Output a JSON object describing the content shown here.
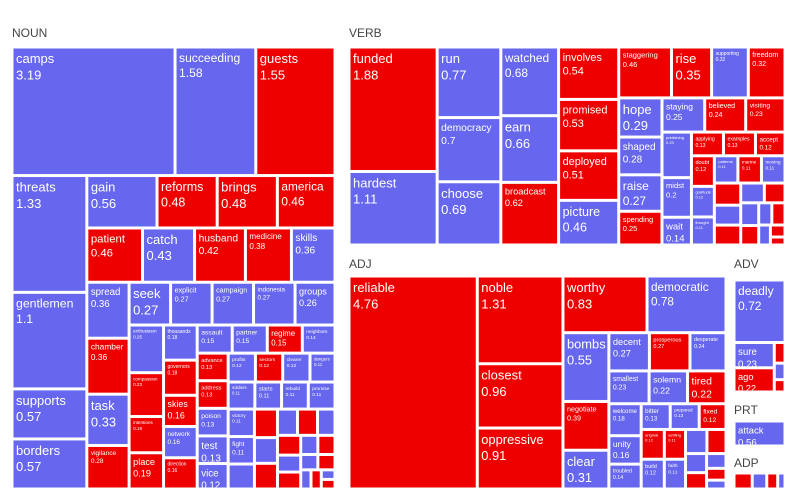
{
  "chart_data": {
    "type": "treemap",
    "colors": {
      "positive": "#6666ee",
      "negative": "#ee0000",
      "text": "#ffffff",
      "header": "#444444"
    },
    "groups": [
      {
        "name": "NOUN",
        "items": [
          {
            "label": "camps",
            "value": 3.19,
            "sentiment": "positive"
          },
          {
            "label": "succeeding",
            "value": 1.58,
            "sentiment": "positive"
          },
          {
            "label": "guests",
            "value": 1.55,
            "sentiment": "negative"
          },
          {
            "label": "threats",
            "value": 1.33,
            "sentiment": "positive"
          },
          {
            "label": "gentlemen",
            "value": 1.1,
            "sentiment": "positive"
          },
          {
            "label": "supports",
            "value": 0.57,
            "sentiment": "positive"
          },
          {
            "label": "borders",
            "value": 0.57,
            "sentiment": "positive"
          },
          {
            "label": "gain",
            "value": 0.56,
            "sentiment": "positive"
          },
          {
            "label": "reforms",
            "value": 0.48,
            "sentiment": "negative"
          },
          {
            "label": "husband",
            "value": 0.42,
            "sentiment": "negative"
          },
          {
            "label": "task",
            "value": 0.33,
            "sentiment": "positive"
          },
          {
            "label": "vigilance",
            "value": 0.28,
            "sentiment": "negative"
          },
          {
            "label": "seek",
            "value": 0.27,
            "sentiment": "positive"
          },
          {
            "label": "explicit",
            "value": 0.27,
            "sentiment": "positive"
          },
          {
            "label": "campaign",
            "value": 0.27,
            "sentiment": "positive"
          },
          {
            "label": "indonesia",
            "value": 0.27,
            "sentiment": "positive"
          },
          {
            "label": "brings",
            "value": 0.48,
            "sentiment": "negative"
          },
          {
            "label": "medicine",
            "value": 0.38,
            "sentiment": "negative"
          },
          {
            "label": "groups",
            "value": 0.26,
            "sentiment": "positive"
          },
          {
            "label": "america",
            "value": 0.46,
            "sentiment": "negative"
          },
          {
            "label": "skills",
            "value": 0.36,
            "sentiment": "positive"
          },
          {
            "label": "enthusiasm",
            "value": 0.25,
            "sentiment": "positive"
          },
          {
            "label": "compassion",
            "value": 0.23,
            "sentiment": "negative"
          },
          {
            "label": "patient",
            "value": 0.46,
            "sentiment": "negative"
          },
          {
            "label": "spread",
            "value": 0.36,
            "sentiment": "positive"
          },
          {
            "label": "intentions",
            "value": 0.19,
            "sentiment": "negative"
          },
          {
            "label": "place",
            "value": 0.19,
            "sentiment": "negative"
          },
          {
            "label": "catch",
            "value": 0.43,
            "sentiment": "positive"
          },
          {
            "label": "chamber",
            "value": 0.36,
            "sentiment": "negative"
          },
          {
            "label": "thousands",
            "value": 0.18,
            "sentiment": "positive"
          },
          {
            "label": "assault",
            "value": 0.15,
            "sentiment": "positive"
          },
          {
            "label": "partner",
            "value": 0.15,
            "sentiment": "positive"
          },
          {
            "label": "regime",
            "value": 0.15,
            "sentiment": "negative"
          },
          {
            "label": "advance",
            "value": 0.13,
            "sentiment": "negative"
          },
          {
            "label": "address",
            "value": 0.13,
            "sentiment": "negative"
          },
          {
            "label": "poison",
            "value": 0.13,
            "sentiment": "positive"
          },
          {
            "label": "vice",
            "value": 0.12,
            "sentiment": "positive"
          },
          {
            "label": "profits",
            "value": 0.12,
            "sentiment": "positive"
          },
          {
            "label": "sectors",
            "value": 0.12,
            "sentiment": "negative"
          },
          {
            "label": "skies",
            "value": 0.16,
            "sentiment": "negative"
          },
          {
            "label": "clearer",
            "value": 0.12,
            "sentiment": "positive"
          },
          {
            "label": "dangers",
            "value": 0.11,
            "sentiment": "positive"
          },
          {
            "label": "soldiers",
            "value": 0.11,
            "sentiment": "positive"
          },
          {
            "label": "starts",
            "value": 0.11,
            "sentiment": "positive"
          },
          {
            "label": "test",
            "value": 0.13,
            "sentiment": "positive"
          },
          {
            "label": "rebuild",
            "value": 0.11,
            "sentiment": "positive"
          },
          {
            "label": "promise",
            "value": 0.11,
            "sentiment": "positive"
          },
          {
            "label": "victory",
            "value": 0.11,
            "sentiment": "positive"
          },
          {
            "label": "fight",
            "value": 0.11,
            "sentiment": "positive"
          },
          {
            "label": "network",
            "value": 0.16,
            "sentiment": "positive"
          },
          {
            "label": "direction",
            "value": 0.16,
            "sentiment": "negative"
          },
          {
            "label": "governors",
            "value": 0.18,
            "sentiment": "negative"
          },
          {
            "label": "neighbors",
            "value": 0.14,
            "sentiment": "positive"
          },
          {
            "label": "",
            "value": 0.1,
            "sentiment": "positive"
          },
          {
            "label": "",
            "value": 0.1,
            "sentiment": "negative"
          },
          {
            "label": "",
            "value": 0.09,
            "sentiment": "positive"
          },
          {
            "label": "",
            "value": 0.09,
            "sentiment": "negative"
          },
          {
            "label": "",
            "value": 0.08,
            "sentiment": "positive"
          },
          {
            "label": "",
            "value": 0.08,
            "sentiment": "negative"
          },
          {
            "label": "",
            "value": 0.07,
            "sentiment": "positive"
          },
          {
            "label": "",
            "value": 0.07,
            "sentiment": "negative"
          },
          {
            "label": "",
            "value": 0.06,
            "sentiment": "positive"
          },
          {
            "label": "",
            "value": 0.06,
            "sentiment": "negative"
          },
          {
            "label": "",
            "value": 0.05,
            "sentiment": "positive"
          },
          {
            "label": "",
            "value": 0.05,
            "sentiment": "negative"
          },
          {
            "label": "",
            "value": 0.04,
            "sentiment": "positive"
          },
          {
            "label": "",
            "value": 0.04,
            "sentiment": "negative"
          },
          {
            "label": "",
            "value": 0.03,
            "sentiment": "positive"
          },
          {
            "label": "",
            "value": 0.03,
            "sentiment": "negative"
          },
          {
            "label": "",
            "value": 0.02,
            "sentiment": "positive"
          },
          {
            "label": "",
            "value": 0.02,
            "sentiment": "negative"
          }
        ]
      },
      {
        "name": "VERB",
        "items": [
          {
            "label": "funded",
            "value": 1.88,
            "sentiment": "negative"
          },
          {
            "label": "hardest",
            "value": 1.11,
            "sentiment": "positive"
          },
          {
            "label": "run",
            "value": 0.77,
            "sentiment": "positive"
          },
          {
            "label": "watched",
            "value": 0.68,
            "sentiment": "positive"
          },
          {
            "label": "involves",
            "value": 0.54,
            "sentiment": "negative"
          },
          {
            "label": "picture",
            "value": 0.46,
            "sentiment": "positive"
          },
          {
            "label": "rise",
            "value": 0.35,
            "sentiment": "negative"
          },
          {
            "label": "supporting",
            "value": 0.32,
            "sentiment": "positive"
          },
          {
            "label": "freedom",
            "value": 0.32,
            "sentiment": "negative"
          },
          {
            "label": "democracy",
            "value": 0.7,
            "sentiment": "positive"
          },
          {
            "label": "earn",
            "value": 0.66,
            "sentiment": "positive"
          },
          {
            "label": "promised",
            "value": 0.53,
            "sentiment": "negative"
          },
          {
            "label": "hope",
            "value": 0.29,
            "sentiment": "positive"
          },
          {
            "label": "spending",
            "value": 0.25,
            "sentiment": "negative"
          },
          {
            "label": "believed",
            "value": 0.24,
            "sentiment": "negative"
          },
          {
            "label": "visiting",
            "value": 0.23,
            "sentiment": "negative"
          },
          {
            "label": "publishing",
            "value": 0.23,
            "sentiment": "positive"
          },
          {
            "label": "choose",
            "value": 0.69,
            "sentiment": "positive"
          },
          {
            "label": "broadcast",
            "value": 0.62,
            "sentiment": "negative"
          },
          {
            "label": "deployed",
            "value": 0.51,
            "sentiment": "negative"
          },
          {
            "label": "shaped",
            "value": 0.28,
            "sentiment": "positive"
          },
          {
            "label": "midst",
            "value": 0.2,
            "sentiment": "positive"
          },
          {
            "label": "raise",
            "value": 0.27,
            "sentiment": "positive"
          },
          {
            "label": "wait",
            "value": 0.14,
            "sentiment": "positive"
          },
          {
            "label": "staggering",
            "value": 0.46,
            "sentiment": "negative"
          },
          {
            "label": "staying",
            "value": 0.25,
            "sentiment": "positive"
          },
          {
            "label": "applying",
            "value": 0.13,
            "sentiment": "negative"
          },
          {
            "label": "examples",
            "value": 0.13,
            "sentiment": "negative"
          },
          {
            "label": "accept",
            "value": 0.12,
            "sentiment": "negative"
          },
          {
            "label": "doubt",
            "value": 0.12,
            "sentiment": "negative"
          },
          {
            "label": "gratitude",
            "value": 0.12,
            "sentiment": "positive"
          },
          {
            "label": "thought",
            "value": 0.11,
            "sentiment": "positive"
          },
          {
            "label": "patterns",
            "value": 0.11,
            "sentiment": "positive"
          },
          {
            "label": "marine",
            "value": 0.11,
            "sentiment": "negative"
          },
          {
            "label": "moving",
            "value": 0.11,
            "sentiment": "positive"
          },
          {
            "label": "",
            "value": 0.1,
            "sentiment": "negative"
          },
          {
            "label": "",
            "value": 0.09,
            "sentiment": "positive"
          },
          {
            "label": "",
            "value": 0.09,
            "sentiment": "negative"
          },
          {
            "label": "",
            "value": 0.08,
            "sentiment": "positive"
          },
          {
            "label": "",
            "value": 0.07,
            "sentiment": "negative"
          },
          {
            "label": "",
            "value": 0.07,
            "sentiment": "positive"
          },
          {
            "label": "",
            "value": 0.06,
            "sentiment": "negative"
          },
          {
            "label": "",
            "value": 0.05,
            "sentiment": "positive"
          },
          {
            "label": "",
            "value": 0.05,
            "sentiment": "negative"
          },
          {
            "label": "",
            "value": 0.04,
            "sentiment": "positive"
          },
          {
            "label": "",
            "value": 0.03,
            "sentiment": "negative"
          },
          {
            "label": "",
            "value": 0.02,
            "sentiment": "negative"
          }
        ]
      },
      {
        "name": "ADJ",
        "items": [
          {
            "label": "reliable",
            "value": 4.76,
            "sentiment": "negative"
          },
          {
            "label": "noble",
            "value": 1.31,
            "sentiment": "negative"
          },
          {
            "label": "worthy",
            "value": 0.83,
            "sentiment": "negative"
          },
          {
            "label": "democratic",
            "value": 0.78,
            "sentiment": "positive"
          },
          {
            "label": "closest",
            "value": 0.96,
            "sentiment": "negative"
          },
          {
            "label": "bombs",
            "value": 0.55,
            "sentiment": "positive"
          },
          {
            "label": "decent",
            "value": 0.27,
            "sentiment": "positive"
          },
          {
            "label": "prosperous",
            "value": 0.27,
            "sentiment": "negative"
          },
          {
            "label": "desperate",
            "value": 0.24,
            "sentiment": "positive"
          },
          {
            "label": "oppressive",
            "value": 0.91,
            "sentiment": "negative"
          },
          {
            "label": "smallest",
            "value": 0.23,
            "sentiment": "positive"
          },
          {
            "label": "solemn",
            "value": 0.22,
            "sentiment": "positive"
          },
          {
            "label": "tired",
            "value": 0.22,
            "sentiment": "negative"
          },
          {
            "label": "negotiate",
            "value": 0.39,
            "sentiment": "negative"
          },
          {
            "label": "clear",
            "value": 0.31,
            "sentiment": "positive"
          },
          {
            "label": "welcome",
            "value": 0.18,
            "sentiment": "positive"
          },
          {
            "label": "fixed",
            "value": 0.12,
            "sentiment": "negative"
          },
          {
            "label": "settling",
            "value": 0.11,
            "sentiment": "negative"
          },
          {
            "label": "faith",
            "value": 0.11,
            "sentiment": "positive"
          },
          {
            "label": "unity",
            "value": 0.16,
            "sentiment": "positive"
          },
          {
            "label": "bitter",
            "value": 0.13,
            "sentiment": "positive"
          },
          {
            "label": "troubled",
            "value": 0.14,
            "sentiment": "positive"
          },
          {
            "label": "prepared",
            "value": 0.13,
            "sentiment": "positive"
          },
          {
            "label": "original",
            "value": 0.12,
            "sentiment": "negative"
          },
          {
            "label": "build",
            "value": 0.12,
            "sentiment": "positive"
          },
          {
            "label": "",
            "value": 0.09,
            "sentiment": "positive"
          },
          {
            "label": "",
            "value": 0.08,
            "sentiment": "negative"
          },
          {
            "label": "",
            "value": 0.07,
            "sentiment": "positive"
          },
          {
            "label": "",
            "value": 0.06,
            "sentiment": "negative"
          },
          {
            "label": "",
            "value": 0.05,
            "sentiment": "positive"
          },
          {
            "label": "",
            "value": 0.04,
            "sentiment": "negative"
          },
          {
            "label": "",
            "value": 0.03,
            "sentiment": "positive"
          }
        ]
      },
      {
        "name": "ADV",
        "items": [
          {
            "label": "deadly",
            "value": 0.72,
            "sentiment": "positive"
          },
          {
            "label": "sure",
            "value": 0.23,
            "sentiment": "positive"
          },
          {
            "label": "ago",
            "value": 0.22,
            "sentiment": "negative"
          },
          {
            "label": "",
            "value": 0.05,
            "sentiment": "negative"
          },
          {
            "label": "",
            "value": 0.04,
            "sentiment": "positive"
          },
          {
            "label": "",
            "value": 0.03,
            "sentiment": "negative"
          }
        ]
      },
      {
        "name": "PRT",
        "items": [
          {
            "label": "attack",
            "value": 0.56,
            "sentiment": "positive"
          }
        ]
      },
      {
        "name": "ADP",
        "items": [
          {
            "label": "",
            "value": 0.05,
            "sentiment": "negative"
          },
          {
            "label": "",
            "value": 0.04,
            "sentiment": "positive"
          },
          {
            "label": "",
            "value": 0.03,
            "sentiment": "negative"
          },
          {
            "label": "",
            "value": 0.02,
            "sentiment": "positive"
          }
        ]
      }
    ]
  }
}
